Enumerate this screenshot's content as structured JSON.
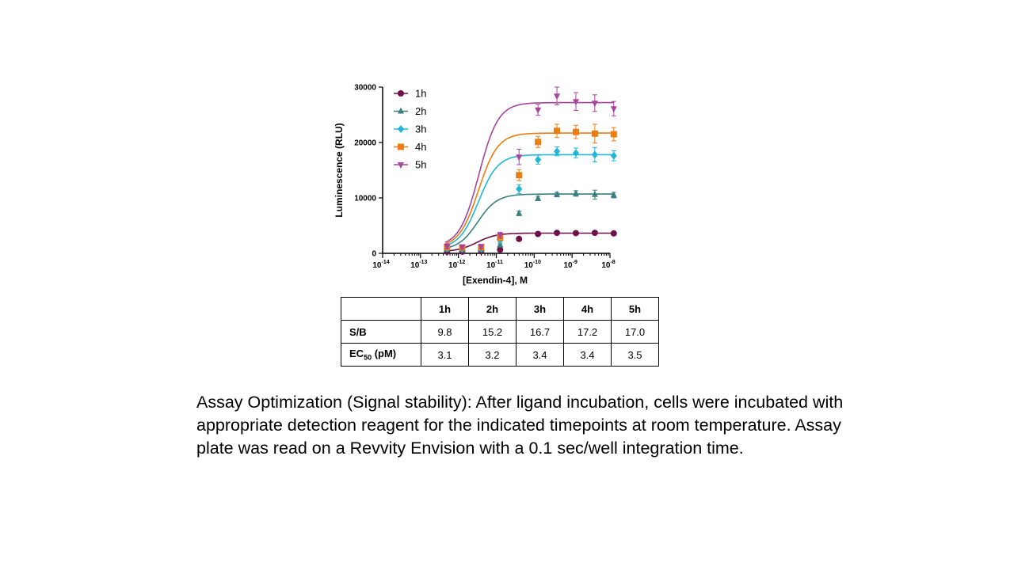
{
  "chart_data": {
    "type": "line",
    "title": "",
    "xlabel": "[Exendin-4], M",
    "ylabel": "Luminescence (RLU)",
    "xscale": "log",
    "xlim_exp": [
      -14,
      -8
    ],
    "x_tick_exponents": [
      "-14",
      "-13",
      "-12",
      "-11",
      "-10",
      "-9",
      "-8"
    ],
    "ylim": [
      0,
      30000
    ],
    "y_ticks": [
      "0",
      "10000",
      "20000",
      "30000"
    ],
    "legend_position": "top-left",
    "x_log10": [
      -12.3,
      -11.9,
      -11.4,
      -10.9,
      -10.4,
      -9.9,
      -9.4,
      -8.9,
      -8.4,
      -7.9
    ],
    "series": [
      {
        "name": "1h",
        "color": "#6e0f47",
        "marker": "circle",
        "values": [
          300,
          300,
          350,
          650,
          2600,
          3500,
          3700,
          3650,
          3700,
          3600
        ],
        "errors": [
          150,
          150,
          150,
          150,
          200,
          200,
          200,
          200,
          250,
          250
        ],
        "fit": {
          "bottom": 300,
          "top": 3650,
          "log_ec50": -11.51,
          "hill": 1.7
        }
      },
      {
        "name": "2h",
        "color": "#3c7f7f",
        "marker": "triangle",
        "values": [
          700,
          600,
          650,
          1500,
          7200,
          9900,
          10600,
          10800,
          10600,
          10500
        ],
        "errors": [
          250,
          200,
          200,
          250,
          400,
          400,
          400,
          500,
          800,
          500
        ],
        "fit": {
          "bottom": 600,
          "top": 10700,
          "log_ec50": -11.49,
          "hill": 1.7
        }
      },
      {
        "name": "3h",
        "color": "#1fb6d9",
        "marker": "diamond",
        "values": [
          900,
          800,
          850,
          2400,
          11600,
          16900,
          18400,
          18100,
          17800,
          17600
        ],
        "errors": [
          300,
          300,
          300,
          400,
          800,
          800,
          800,
          900,
          1300,
          900
        ],
        "fit": {
          "bottom": 850,
          "top": 17800,
          "log_ec50": -11.47,
          "hill": 1.7
        }
      },
      {
        "name": "4h",
        "color": "#ea7d13",
        "marker": "square",
        "values": [
          1100,
          1050,
          1100,
          2800,
          14100,
          20100,
          22100,
          21900,
          21600,
          21500
        ],
        "errors": [
          350,
          300,
          300,
          400,
          1000,
          1000,
          1200,
          1200,
          1700,
          1200
        ],
        "fit": {
          "bottom": 1050,
          "top": 21700,
          "log_ec50": -11.47,
          "hill": 1.7
        }
      },
      {
        "name": "5h",
        "color": "#a8449e",
        "marker": "triangle-down",
        "values": [
          1300,
          1200,
          1250,
          3300,
          17400,
          25900,
          28400,
          27400,
          27100,
          26100
        ],
        "errors": [
          400,
          350,
          350,
          500,
          1400,
          1000,
          1600,
          1600,
          1500,
          1300
        ],
        "fit": {
          "bottom": 1200,
          "top": 27200,
          "log_ec50": -11.46,
          "hill": 1.7
        }
      }
    ]
  },
  "table": {
    "headers": [
      "1h",
      "2h",
      "3h",
      "4h",
      "5h"
    ],
    "rows": [
      {
        "label": "S/B",
        "values": [
          "9.8",
          "15.2",
          "16.7",
          "17.2",
          "17.0"
        ]
      },
      {
        "label_main": "EC",
        "label_sub": "50",
        "label_unit": " (pM)",
        "values": [
          "3.1",
          "3.2",
          "3.4",
          "3.4",
          "3.5"
        ]
      }
    ]
  },
  "caption": "Assay Optimization (Signal stability):  After ligand incubation, cells were incubated with appropriate detection reagent for the indicated timepoints at room temperature. Assay plate was read on a Revvity Envision with a 0.1 sec/well integration time."
}
